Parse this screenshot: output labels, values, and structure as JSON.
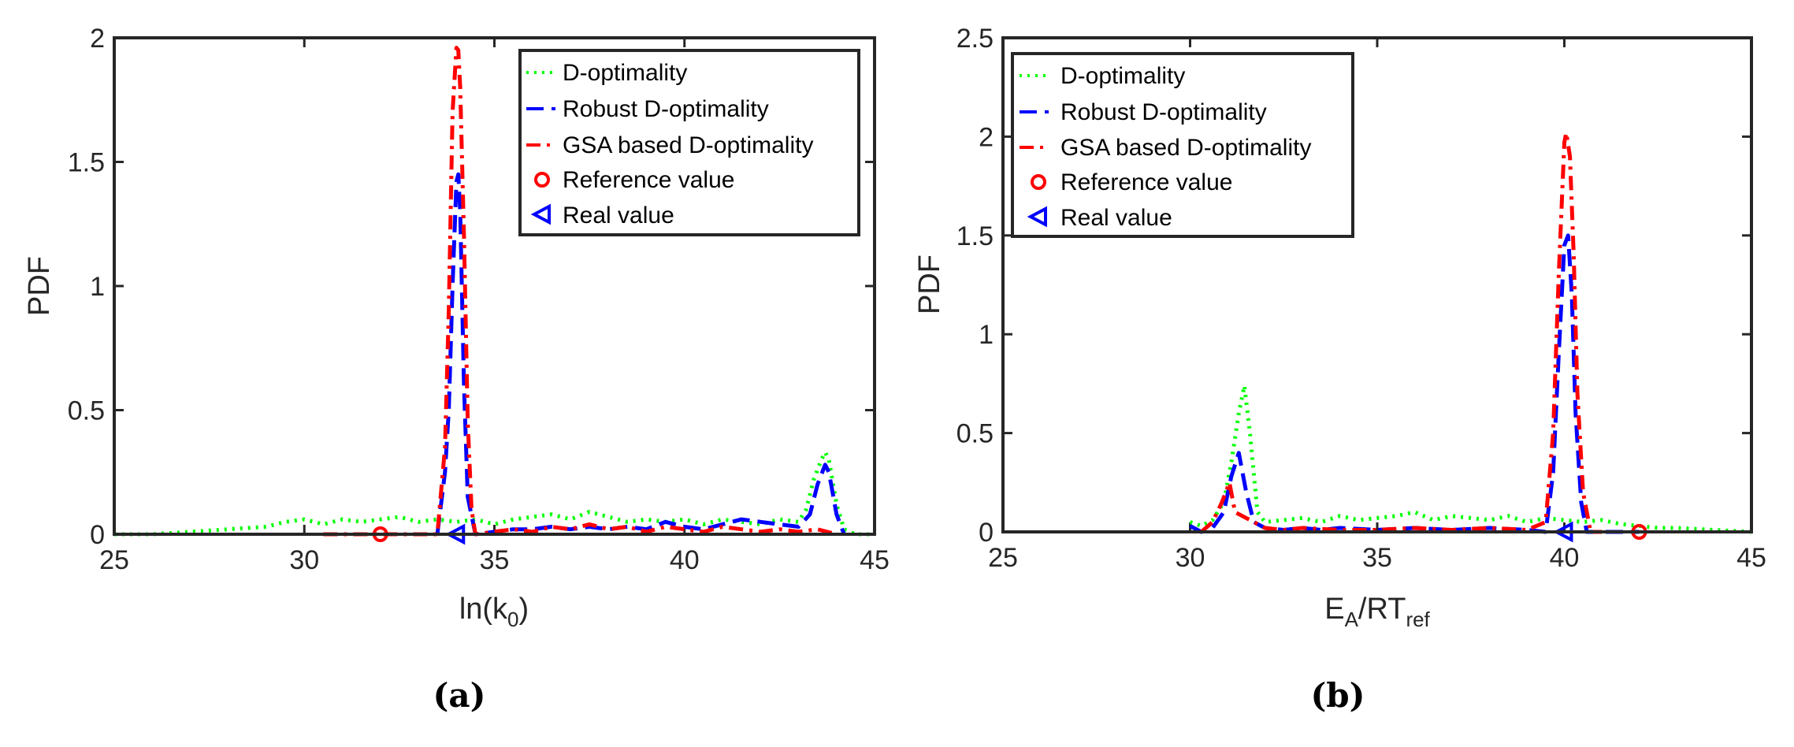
{
  "figure": {
    "caption_a": "(a)",
    "caption_b": "(b)"
  },
  "colors": {
    "d_optimality": "#00ff00",
    "robust": "#0000ff",
    "gsa": "#ff0000",
    "reference": "#ff0000",
    "real": "#0000ff",
    "axis": "#262626"
  },
  "chart_data": [
    {
      "type": "line",
      "panel": "a",
      "title": "",
      "xlabel": "ln(k",
      "xlabel_sub": "0",
      "xlabel_end": ")",
      "ylabel": "PDF",
      "xlim": [
        25,
        45
      ],
      "ylim": [
        0,
        2
      ],
      "xticks": [
        25,
        30,
        35,
        40,
        45
      ],
      "xtick_labels": [
        "25",
        "30",
        "35",
        "40",
        "45"
      ],
      "yticks": [
        0,
        0.5,
        1,
        1.5,
        2
      ],
      "ytick_labels": [
        "0",
        "0.5",
        "1",
        "1.5",
        "2"
      ],
      "legend_position": "top-right",
      "legend": [
        "D-optimality",
        "Robust D-optimality",
        "GSA based D-optimality",
        "Reference value",
        "Real value"
      ],
      "series": [
        {
          "name": "D-optimality",
          "style": "dotted",
          "x": [
            25,
            26,
            27,
            28,
            29,
            29.5,
            30,
            30.5,
            31,
            31.5,
            32,
            32.5,
            33,
            33.5,
            34,
            34.5,
            35,
            35.5,
            36,
            36.5,
            37,
            37.5,
            38,
            38.5,
            39,
            39.5,
            40,
            40.5,
            41,
            41.5,
            42,
            42.5,
            43,
            43.2,
            43.4,
            43.6,
            43.7,
            43.8,
            44,
            44.2,
            44.5,
            45
          ],
          "y": [
            0,
            0,
            0.01,
            0.02,
            0.03,
            0.05,
            0.06,
            0.04,
            0.06,
            0.05,
            0.06,
            0.07,
            0.05,
            0.06,
            0.05,
            0.06,
            0.04,
            0.06,
            0.07,
            0.08,
            0.06,
            0.09,
            0.07,
            0.05,
            0.06,
            0.05,
            0.06,
            0.04,
            0.06,
            0.05,
            0.04,
            0.06,
            0.05,
            0.1,
            0.22,
            0.3,
            0.33,
            0.3,
            0.12,
            0.02,
            0,
            0
          ]
        },
        {
          "name": "Robust D-optimality",
          "style": "dashed",
          "x": [
            33.5,
            33.7,
            33.8,
            33.9,
            34.0,
            34.05,
            34.1,
            34.2,
            34.3,
            34.5,
            35,
            35.5,
            36,
            36.5,
            37,
            37.5,
            38,
            38.5,
            39,
            39.5,
            40,
            40.5,
            41,
            41.5,
            42,
            42.5,
            43,
            43.3,
            43.5,
            43.7,
            43.8,
            44,
            44.2
          ],
          "y": [
            0,
            0.25,
            0.5,
            1.0,
            1.42,
            1.45,
            1.3,
            0.6,
            0.15,
            0,
            0.01,
            0.02,
            0.02,
            0.03,
            0.02,
            0.03,
            0.02,
            0.03,
            0.02,
            0.05,
            0.03,
            0.02,
            0.04,
            0.06,
            0.05,
            0.04,
            0.03,
            0.08,
            0.2,
            0.28,
            0.25,
            0.08,
            0
          ]
        },
        {
          "name": "GSA based D-optimality",
          "style": "dashdot",
          "x": [
            30.5,
            31.5,
            32.5,
            33.5,
            33.7,
            33.8,
            33.9,
            34.0,
            34.05,
            34.1,
            34.2,
            34.3,
            34.4,
            34.5,
            35,
            35.5,
            36,
            36.5,
            37,
            37.5,
            38,
            38.5,
            39,
            39.5,
            40,
            40.5,
            41,
            41.5,
            42,
            42.5,
            43,
            43.5,
            44
          ],
          "y": [
            0,
            0,
            0,
            0,
            0.35,
            0.9,
            1.7,
            1.96,
            1.95,
            1.8,
            1.2,
            0.45,
            0.1,
            0,
            0.01,
            0.02,
            0.01,
            0.03,
            0.02,
            0.04,
            0.02,
            0.03,
            0.01,
            0.03,
            0.02,
            0.01,
            0.03,
            0.02,
            0.01,
            0.02,
            0.01,
            0.02,
            0
          ]
        }
      ],
      "markers": [
        {
          "name": "Reference value",
          "shape": "circle",
          "x": 32,
          "y": 0
        },
        {
          "name": "Real value",
          "shape": "triangle-left",
          "x": 34,
          "y": 0
        }
      ]
    },
    {
      "type": "line",
      "panel": "b",
      "title": "",
      "xlabel": "E",
      "xlabel_sub": "A",
      "xlabel_mid": "/RT",
      "xlabel_sub2": "ref",
      "ylabel": "PDF",
      "xlim": [
        25,
        45
      ],
      "ylim": [
        0,
        2.5
      ],
      "xticks": [
        25,
        30,
        35,
        40,
        45
      ],
      "xtick_labels": [
        "25",
        "30",
        "35",
        "40",
        "45"
      ],
      "yticks": [
        0,
        0.5,
        1,
        1.5,
        2,
        2.5
      ],
      "ytick_labels": [
        "0",
        "0.5",
        "1",
        "1.5",
        "2",
        "2.5"
      ],
      "legend_position": "top-left",
      "legend": [
        "D-optimality",
        "Robust D-optimality",
        "GSA based D-optimality",
        "Reference value",
        "Real value"
      ],
      "series": [
        {
          "name": "D-optimality",
          "style": "dotted",
          "x": [
            30,
            30.3,
            30.6,
            30.9,
            31.1,
            31.3,
            31.45,
            31.6,
            31.8,
            32,
            32.5,
            33,
            33.5,
            34,
            34.5,
            35,
            35.5,
            36,
            36.5,
            37,
            37.5,
            38,
            38.5,
            39,
            39.5,
            40,
            40.5,
            41,
            41.5,
            42,
            42.5,
            43,
            44,
            45
          ],
          "y": [
            0.05,
            0.03,
            0.06,
            0.15,
            0.35,
            0.6,
            0.74,
            0.5,
            0.1,
            0.05,
            0.06,
            0.07,
            0.05,
            0.08,
            0.06,
            0.07,
            0.08,
            0.1,
            0.06,
            0.08,
            0.07,
            0.06,
            0.08,
            0.05,
            0.07,
            0.06,
            0.05,
            0.06,
            0.04,
            0.03,
            0.02,
            0.02,
            0.01,
            0
          ]
        },
        {
          "name": "Robust D-optimality",
          "style": "dashed",
          "x": [
            30,
            30.3,
            30.6,
            30.9,
            31.1,
            31.3,
            31.5,
            31.7,
            32,
            32.5,
            33,
            33.5,
            34,
            35,
            36,
            37,
            38,
            39,
            39.5,
            39.7,
            39.85,
            40.0,
            40.1,
            40.2,
            40.3,
            40.45,
            40.6,
            41,
            42
          ],
          "y": [
            0.03,
            0,
            0.02,
            0.1,
            0.28,
            0.4,
            0.2,
            0.05,
            0.02,
            0.01,
            0.02,
            0.01,
            0.02,
            0.01,
            0.02,
            0.01,
            0.02,
            0.01,
            0,
            0.3,
            0.9,
            1.45,
            1.5,
            1.2,
            0.6,
            0.15,
            0,
            0,
            0
          ]
        },
        {
          "name": "GSA based D-optimality",
          "style": "dashdot",
          "x": [
            30.3,
            30.6,
            30.85,
            31.05,
            31.2,
            31.4,
            31.7,
            32,
            32.5,
            33,
            34,
            35,
            36,
            37,
            38,
            39,
            39.5,
            39.7,
            39.85,
            40.0,
            40.05,
            40.15,
            40.25,
            40.35,
            40.5,
            40.7,
            41
          ],
          "y": [
            0,
            0.05,
            0.15,
            0.25,
            0.1,
            0.08,
            0.05,
            0.02,
            0.01,
            0.02,
            0.01,
            0.01,
            0.02,
            0.01,
            0.02,
            0.01,
            0.05,
            0.5,
            1.3,
            1.97,
            2.02,
            1.9,
            1.4,
            0.7,
            0.2,
            0,
            0
          ]
        }
      ],
      "markers": [
        {
          "name": "Reference value",
          "shape": "circle",
          "x": 42,
          "y": 0
        },
        {
          "name": "Real value",
          "shape": "triangle-left",
          "x": 40,
          "y": 0
        }
      ]
    }
  ]
}
